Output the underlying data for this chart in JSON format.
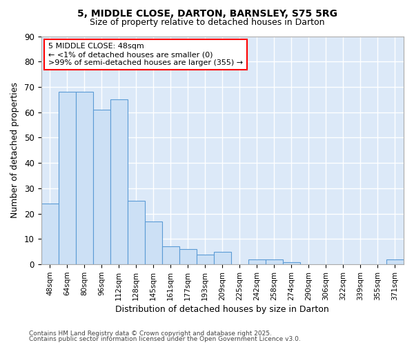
{
  "title1": "5, MIDDLE CLOSE, DARTON, BARNSLEY, S75 5RG",
  "title2": "Size of property relative to detached houses in Darton",
  "xlabel": "Distribution of detached houses by size in Darton",
  "ylabel": "Number of detached properties",
  "categories": [
    "48sqm",
    "64sqm",
    "80sqm",
    "96sqm",
    "112sqm",
    "128sqm",
    "145sqm",
    "161sqm",
    "177sqm",
    "193sqm",
    "209sqm",
    "225sqm",
    "242sqm",
    "258sqm",
    "274sqm",
    "290sqm",
    "306sqm",
    "322sqm",
    "339sqm",
    "355sqm",
    "371sqm"
  ],
  "values": [
    24,
    68,
    68,
    61,
    65,
    25,
    17,
    7,
    6,
    4,
    5,
    0,
    2,
    2,
    1,
    0,
    0,
    0,
    0,
    0,
    2
  ],
  "bar_color": "#cce0f5",
  "bar_edge_color": "#5b9bd5",
  "bg_color": "#dce9f8",
  "grid_color": "#ffffff",
  "annotation_line1": "5 MIDDLE CLOSE: 48sqm",
  "annotation_line2": "← <1% of detached houses are smaller (0)",
  "annotation_line3": ">99% of semi-detached houses are larger (355) →",
  "footer1": "Contains HM Land Registry data © Crown copyright and database right 2025.",
  "footer2": "Contains public sector information licensed under the Open Government Licence v3.0.",
  "ylim": [
    0,
    90
  ],
  "yticks": [
    0,
    10,
    20,
    30,
    40,
    50,
    60,
    70,
    80,
    90
  ]
}
